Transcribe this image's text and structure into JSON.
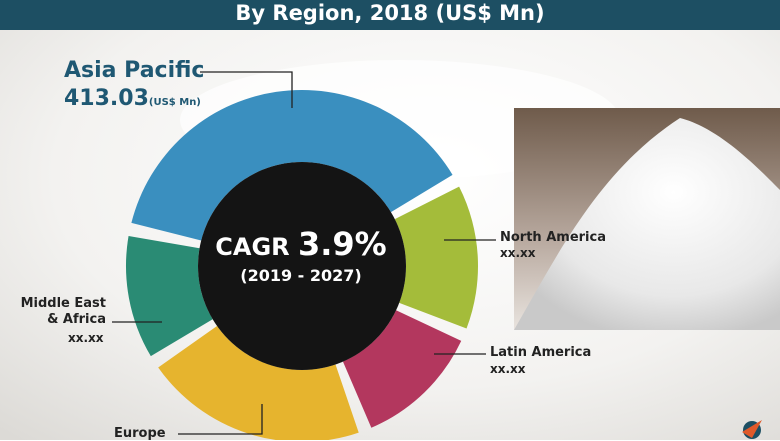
{
  "header": {
    "title": "By Region, 2018 (US$ Mn)"
  },
  "center": {
    "cagr_label": "CAGR",
    "cagr_value": "3.9%",
    "period": "(2019 - 2027)"
  },
  "labels": {
    "asia_pacific": {
      "name": "Asia Pacific",
      "value": "413.03",
      "unit": "(US$ Mn)"
    },
    "north_america": {
      "name": "North America",
      "value": "xx.xx"
    },
    "latin_america": {
      "name": "Latin America",
      "value": "xx.xx"
    },
    "middle_east_africa": {
      "name": "Middle East\n& Africa",
      "value": "xx.xx"
    },
    "europe": {
      "name": "Europe"
    }
  },
  "chart_data": {
    "type": "pie",
    "title": "By Region, 2018 (US$ Mn)",
    "unit": "US$ Mn",
    "categories": [
      "Asia Pacific",
      "North America",
      "Latin America",
      "Europe",
      "Middle East & Africa"
    ],
    "values": [
      413.03,
      null,
      null,
      null,
      null
    ],
    "value_labels": [
      "413.03",
      "xx.xx",
      "xx.xx",
      "",
      "xx.xx"
    ],
    "colors": [
      "#3a8fbf",
      "#a4bc3a",
      "#b3375e",
      "#e6b42e",
      "#2a8b74"
    ],
    "donut": true,
    "center_text": "CAGR 3.9% (2019 - 2027)"
  }
}
